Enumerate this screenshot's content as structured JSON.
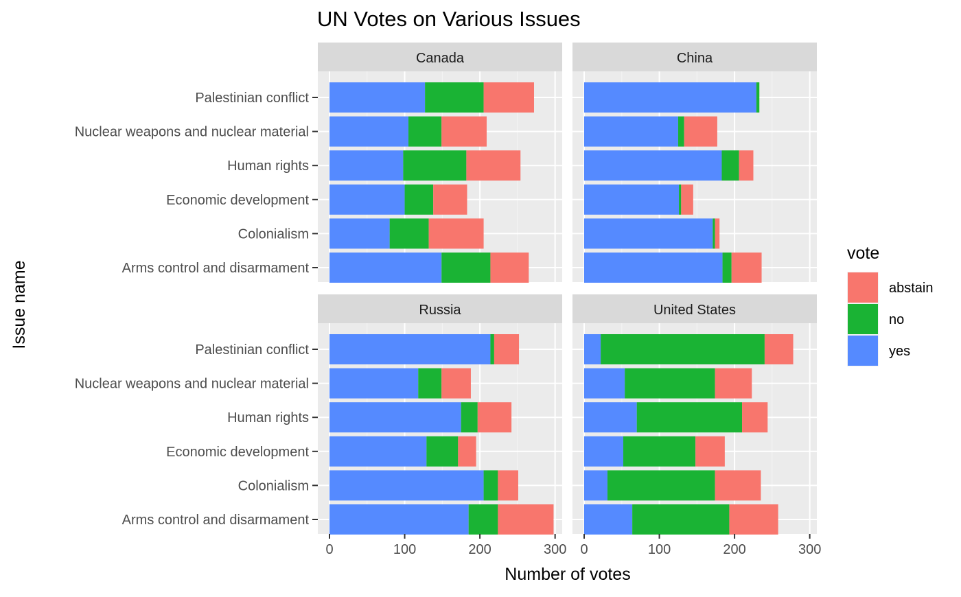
{
  "chart_data": {
    "type": "bar",
    "orientation": "horizontal",
    "stacked": true,
    "title": "UN Votes on Various Issues",
    "xlabel": "Number of votes",
    "ylabel": "Issue name",
    "xlim": [
      0,
      315
    ],
    "x_ticks": [
      "0",
      "100",
      "200",
      "300"
    ],
    "x_tick_values": [
      0,
      100,
      200,
      300
    ],
    "grid": true,
    "legend": {
      "title": "vote",
      "position": "right",
      "entries": [
        "abstain",
        "no",
        "yes"
      ]
    },
    "colors": {
      "abstain": "#F8766D",
      "no": "#1AB334",
      "yes": "#558AFF"
    },
    "categories": [
      "Palestinian conflict",
      "Nuclear weapons and nuclear material",
      "Human rights",
      "Economic development",
      "Colonialism",
      "Arms control and disarmament"
    ],
    "facets": [
      {
        "name": "Canada",
        "series": [
          {
            "name": "yes",
            "values": [
              127,
              105,
              98,
              100,
              80,
              149
            ]
          },
          {
            "name": "no",
            "values": [
              78,
              44,
              84,
              38,
              52,
              65
            ]
          },
          {
            "name": "abstain",
            "values": [
              67,
              60,
              72,
              45,
              73,
              51
            ]
          }
        ]
      },
      {
        "name": "China",
        "series": [
          {
            "name": "yes",
            "values": [
              229,
              125,
              183,
              126,
              171,
              184
            ]
          },
          {
            "name": "no",
            "values": [
              4,
              8,
              23,
              3,
              3,
              12
            ]
          },
          {
            "name": "abstain",
            "values": [
              0,
              44,
              19,
              16,
              6,
              40
            ]
          }
        ]
      },
      {
        "name": "Russia",
        "series": [
          {
            "name": "yes",
            "values": [
              214,
              118,
              175,
              129,
              205,
              185
            ]
          },
          {
            "name": "no",
            "values": [
              5,
              31,
              22,
              42,
              19,
              39
            ]
          },
          {
            "name": "abstain",
            "values": [
              33,
              39,
              45,
              24,
              27,
              74
            ]
          }
        ]
      },
      {
        "name": "United States",
        "series": [
          {
            "name": "yes",
            "values": [
              22,
              54,
              70,
              52,
              31,
              64
            ]
          },
          {
            "name": "no",
            "values": [
              218,
              120,
              140,
              96,
              143,
              129
            ]
          },
          {
            "name": "abstain",
            "values": [
              38,
              49,
              34,
              39,
              61,
              65
            ]
          }
        ]
      }
    ]
  }
}
